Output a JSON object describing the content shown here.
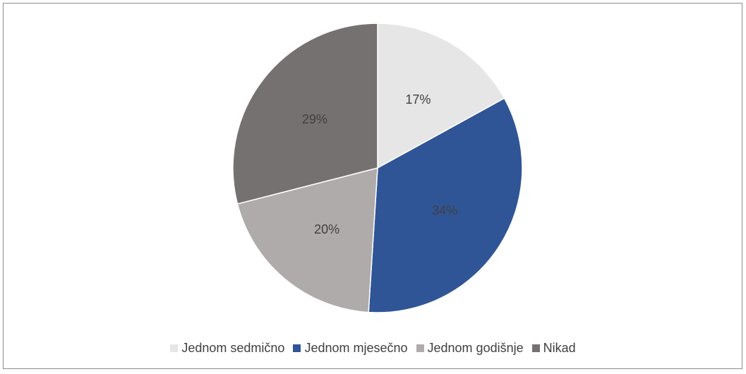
{
  "chart_data": {
    "type": "pie",
    "title": "",
    "slices": [
      {
        "label": "Jednom sedmično",
        "value": 17,
        "display": "17%",
        "color": "#e6e6e6"
      },
      {
        "label": "Jednom mjesečno",
        "value": 34,
        "display": "34%",
        "color": "#2f5597"
      },
      {
        "label": "Jednom godišnje",
        "value": 20,
        "display": "20%",
        "color": "#afabab"
      },
      {
        "label": "Nikad",
        "value": 29,
        "display": "29%",
        "color": "#767171"
      }
    ],
    "legend_position": "bottom"
  }
}
